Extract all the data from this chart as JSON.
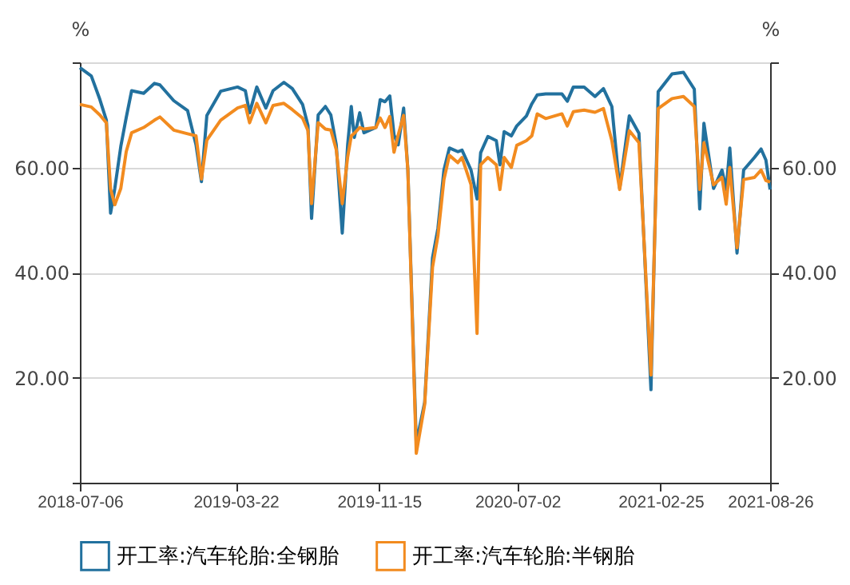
{
  "chart_data": {
    "type": "line",
    "ylabel": "%",
    "y2label": "%",
    "x": [
      "2018-07-06",
      "2018-07-25",
      "2018-08-08",
      "2018-08-19",
      "2018-08-26",
      "2018-09-02",
      "2018-09-12",
      "2018-09-21",
      "2018-09-30",
      "2018-10-20",
      "2018-11-07",
      "2018-11-16",
      "2018-12-09",
      "2019-01-01",
      "2019-01-15",
      "2019-01-24",
      "2019-02-02",
      "2019-02-25",
      "2019-03-25",
      "2019-04-07",
      "2019-04-14",
      "2019-04-26",
      "2019-05-11",
      "2019-05-23",
      "2019-06-10",
      "2019-06-24",
      "2019-07-11",
      "2019-07-20",
      "2019-07-26",
      "2019-08-06",
      "2019-08-18",
      "2019-08-27",
      "2019-09-05",
      "2019-09-15",
      "2019-09-24",
      "2019-09-30",
      "2019-10-05",
      "2019-10-14",
      "2019-10-21",
      "2019-11-10",
      "2019-11-17",
      "2019-11-25",
      "2019-12-03",
      "2019-12-10",
      "2019-12-17",
      "2019-12-26",
      "2020-01-02",
      "2020-01-16",
      "2020-01-30",
      "2020-02-12",
      "2020-02-21",
      "2020-03-02",
      "2020-03-11",
      "2020-03-25",
      "2020-04-01",
      "2020-04-16",
      "2020-04-26",
      "2020-05-02",
      "2020-05-14",
      "2020-05-28",
      "2020-06-03",
      "2020-06-10",
      "2020-06-22",
      "2020-07-01",
      "2020-07-17",
      "2020-07-26",
      "2020-08-04",
      "2020-08-18",
      "2020-09-14",
      "2020-09-23",
      "2020-10-03",
      "2020-10-21",
      "2020-11-08",
      "2020-11-22",
      "2020-12-06",
      "2020-12-19",
      "2021-01-04",
      "2021-01-20",
      "2021-02-09",
      "2021-02-21",
      "2021-03-16",
      "2021-04-04",
      "2021-04-22",
      "2021-05-01",
      "2021-05-08",
      "2021-05-24",
      "2021-06-07",
      "2021-06-14",
      "2021-06-20",
      "2021-07-02",
      "2021-07-13",
      "2021-07-31",
      "2021-08-11",
      "2021-08-19",
      "2021-08-26"
    ],
    "series": [
      {
        "name": "开工率:汽车轮胎:全钢胎",
        "color": "#22719e",
        "values": [
          79.0,
          77.4,
          73.0,
          69.0,
          51.3,
          56,
          64,
          69.5,
          74.6,
          74.1,
          76.0,
          75.7,
          72.7,
          70.8,
          64.3,
          57.3,
          69.9,
          74.5,
          75.3,
          74.6,
          70.4,
          75.3,
          71.3,
          74.6,
          76.2,
          75.0,
          72.0,
          68,
          50.3,
          70,
          71.6,
          70,
          64.3,
          47.5,
          64.3,
          71.6,
          65.7,
          70.4,
          66.6,
          67.6,
          72.9,
          72.5,
          73.6,
          66.2,
          64.3,
          71.3,
          59.6,
          7.5,
          15.3,
          42.8,
          48.4,
          59.5,
          63.7,
          63,
          63.3,
          59.5,
          54,
          62.8,
          65.9,
          65.1,
          60.5,
          66.8,
          66,
          67.9,
          69.8,
          72.1,
          73.8,
          74,
          74,
          72.6,
          75.3,
          75.3,
          73.5,
          75,
          71.6,
          56,
          69.8,
          66.5,
          17.7,
          74.4,
          77.8,
          78.1,
          74.9,
          52.1,
          68.4,
          56,
          59.5,
          55.8,
          63.7,
          43.7,
          59.5,
          61.9,
          63.5,
          61.4,
          55.8
        ]
      },
      {
        "name": "开工率:汽车轮胎:半钢胎",
        "color": "#f28b1f",
        "values": [
          72.0,
          71.5,
          70.0,
          68.5,
          55.9,
          52.9,
          56,
          63,
          66.6,
          67.6,
          69.0,
          69.6,
          67.1,
          66.4,
          66,
          57.8,
          65.2,
          69,
          71.3,
          71.8,
          68.5,
          72.2,
          68.5,
          71.8,
          72.2,
          71.0,
          69.4,
          67,
          53.1,
          68.5,
          67.3,
          67.1,
          63.4,
          53.1,
          62,
          66,
          66.5,
          67.6,
          67.3,
          67.6,
          69.4,
          67.6,
          69.7,
          62.9,
          66.2,
          69.9,
          59.6,
          5.6,
          14.9,
          41,
          47,
          57.7,
          62.3,
          60.9,
          61.9,
          56.7,
          28.4,
          60.5,
          61.9,
          60.5,
          55.8,
          61.9,
          60,
          64.2,
          65.1,
          66,
          70.2,
          69.3,
          70.2,
          67.9,
          70.6,
          70.9,
          70.5,
          71.2,
          65.1,
          55.8,
          67,
          64.7,
          20.5,
          71.2,
          73.1,
          73.5,
          71.6,
          55.8,
          64.7,
          56.7,
          58.1,
          53,
          60,
          44.7,
          57.7,
          58.1,
          59.5,
          57.5,
          57.2
        ]
      }
    ],
    "xlim": [
      "2018-07-06",
      "2021-08-26"
    ],
    "xticks": [
      "2018-07-06",
      "2019-03-22",
      "2019-11-15",
      "2020-07-02",
      "2021-02-25",
      "2021-08-26"
    ],
    "ylim": [
      0,
      80
    ],
    "yticks": [
      {
        "value": 0,
        "label": null
      },
      {
        "value": 20,
        "label": "20.00"
      },
      {
        "value": 40,
        "label": "40.00"
      },
      {
        "value": 60,
        "label": "60.00"
      },
      {
        "value": 80,
        "label": null
      }
    ],
    "y2lim": [
      0,
      80
    ],
    "y2ticks": [
      {
        "value": 0,
        "label": null
      },
      {
        "value": 20,
        "label": "20.00"
      },
      {
        "value": 40,
        "label": "40.00"
      },
      {
        "value": 60,
        "label": "60.00"
      },
      {
        "value": 80,
        "label": null
      }
    ],
    "grid": "y",
    "legend": "bottom",
    "marker": "none",
    "line_style": "solid"
  }
}
